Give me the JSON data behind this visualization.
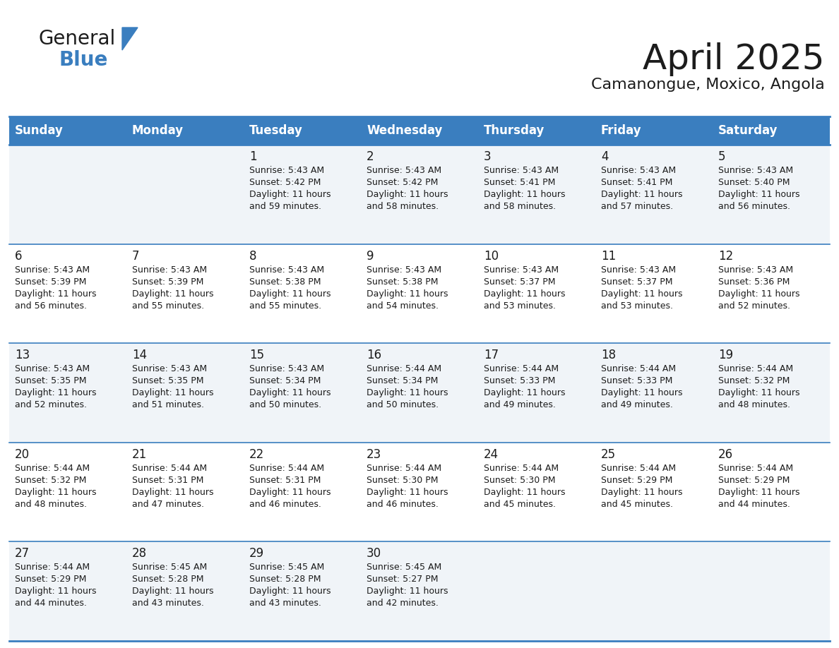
{
  "title": "April 2025",
  "subtitle": "Camanongue, Moxico, Angola",
  "header_bg_color": "#3a7ebf",
  "header_text_color": "#ffffff",
  "row_bg_even": "#f0f4f8",
  "row_bg_odd": "#ffffff",
  "border_color": "#3a7ebf",
  "separator_color": "#3a7ebf",
  "days_of_week": [
    "Sunday",
    "Monday",
    "Tuesday",
    "Wednesday",
    "Thursday",
    "Friday",
    "Saturday"
  ],
  "title_fontsize": 36,
  "subtitle_fontsize": 16,
  "header_fontsize": 12,
  "day_num_fontsize": 12,
  "cell_text_fontsize": 9,
  "fig_width": 11.88,
  "fig_height": 9.18,
  "dpi": 100,
  "calendar": [
    [
      {
        "day": "",
        "sunrise": "",
        "sunset": "",
        "daylight_min": ""
      },
      {
        "day": "",
        "sunrise": "",
        "sunset": "",
        "daylight_min": ""
      },
      {
        "day": "1",
        "sunrise": "5:43 AM",
        "sunset": "5:42 PM",
        "daylight_min": "59 minutes."
      },
      {
        "day": "2",
        "sunrise": "5:43 AM",
        "sunset": "5:42 PM",
        "daylight_min": "58 minutes."
      },
      {
        "day": "3",
        "sunrise": "5:43 AM",
        "sunset": "5:41 PM",
        "daylight_min": "58 minutes."
      },
      {
        "day": "4",
        "sunrise": "5:43 AM",
        "sunset": "5:41 PM",
        "daylight_min": "57 minutes."
      },
      {
        "day": "5",
        "sunrise": "5:43 AM",
        "sunset": "5:40 PM",
        "daylight_min": "56 minutes."
      }
    ],
    [
      {
        "day": "6",
        "sunrise": "5:43 AM",
        "sunset": "5:39 PM",
        "daylight_min": "56 minutes."
      },
      {
        "day": "7",
        "sunrise": "5:43 AM",
        "sunset": "5:39 PM",
        "daylight_min": "55 minutes."
      },
      {
        "day": "8",
        "sunrise": "5:43 AM",
        "sunset": "5:38 PM",
        "daylight_min": "55 minutes."
      },
      {
        "day": "9",
        "sunrise": "5:43 AM",
        "sunset": "5:38 PM",
        "daylight_min": "54 minutes."
      },
      {
        "day": "10",
        "sunrise": "5:43 AM",
        "sunset": "5:37 PM",
        "daylight_min": "53 minutes."
      },
      {
        "day": "11",
        "sunrise": "5:43 AM",
        "sunset": "5:37 PM",
        "daylight_min": "53 minutes."
      },
      {
        "day": "12",
        "sunrise": "5:43 AM",
        "sunset": "5:36 PM",
        "daylight_min": "52 minutes."
      }
    ],
    [
      {
        "day": "13",
        "sunrise": "5:43 AM",
        "sunset": "5:35 PM",
        "daylight_min": "52 minutes."
      },
      {
        "day": "14",
        "sunrise": "5:43 AM",
        "sunset": "5:35 PM",
        "daylight_min": "51 minutes."
      },
      {
        "day": "15",
        "sunrise": "5:43 AM",
        "sunset": "5:34 PM",
        "daylight_min": "50 minutes."
      },
      {
        "day": "16",
        "sunrise": "5:44 AM",
        "sunset": "5:34 PM",
        "daylight_min": "50 minutes."
      },
      {
        "day": "17",
        "sunrise": "5:44 AM",
        "sunset": "5:33 PM",
        "daylight_min": "49 minutes."
      },
      {
        "day": "18",
        "sunrise": "5:44 AM",
        "sunset": "5:33 PM",
        "daylight_min": "49 minutes."
      },
      {
        "day": "19",
        "sunrise": "5:44 AM",
        "sunset": "5:32 PM",
        "daylight_min": "48 minutes."
      }
    ],
    [
      {
        "day": "20",
        "sunrise": "5:44 AM",
        "sunset": "5:32 PM",
        "daylight_min": "48 minutes."
      },
      {
        "day": "21",
        "sunrise": "5:44 AM",
        "sunset": "5:31 PM",
        "daylight_min": "47 minutes."
      },
      {
        "day": "22",
        "sunrise": "5:44 AM",
        "sunset": "5:31 PM",
        "daylight_min": "46 minutes."
      },
      {
        "day": "23",
        "sunrise": "5:44 AM",
        "sunset": "5:30 PM",
        "daylight_min": "46 minutes."
      },
      {
        "day": "24",
        "sunrise": "5:44 AM",
        "sunset": "5:30 PM",
        "daylight_min": "45 minutes."
      },
      {
        "day": "25",
        "sunrise": "5:44 AM",
        "sunset": "5:29 PM",
        "daylight_min": "45 minutes."
      },
      {
        "day": "26",
        "sunrise": "5:44 AM",
        "sunset": "5:29 PM",
        "daylight_min": "44 minutes."
      }
    ],
    [
      {
        "day": "27",
        "sunrise": "5:44 AM",
        "sunset": "5:29 PM",
        "daylight_min": "44 minutes."
      },
      {
        "day": "28",
        "sunrise": "5:45 AM",
        "sunset": "5:28 PM",
        "daylight_min": "43 minutes."
      },
      {
        "day": "29",
        "sunrise": "5:45 AM",
        "sunset": "5:28 PM",
        "daylight_min": "43 minutes."
      },
      {
        "day": "30",
        "sunrise": "5:45 AM",
        "sunset": "5:27 PM",
        "daylight_min": "42 minutes."
      },
      {
        "day": "",
        "sunrise": "",
        "sunset": "",
        "daylight_min": ""
      },
      {
        "day": "",
        "sunrise": "",
        "sunset": "",
        "daylight_min": ""
      },
      {
        "day": "",
        "sunrise": "",
        "sunset": "",
        "daylight_min": ""
      }
    ]
  ]
}
